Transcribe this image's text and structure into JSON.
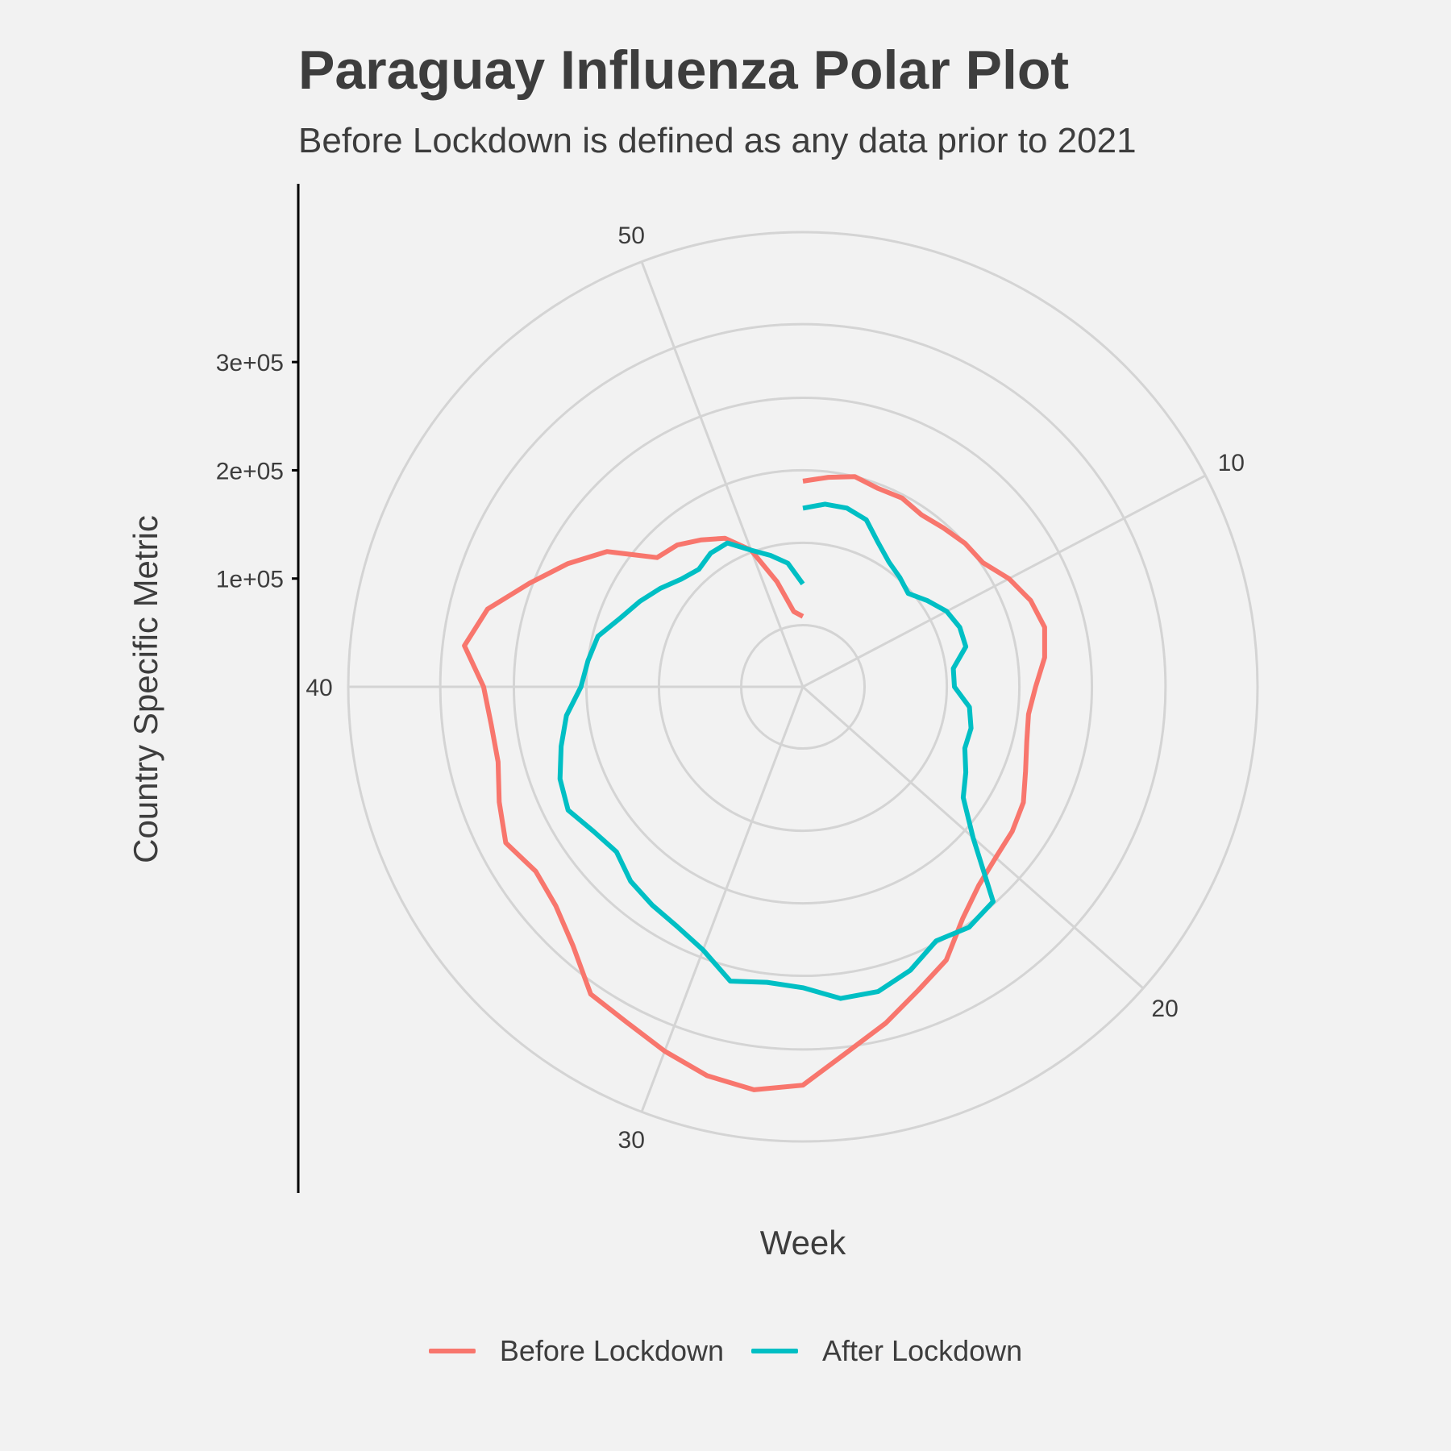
{
  "chart_data": {
    "type": "line",
    "coordinate_system": "polar",
    "title": "Paraguay Influenza Polar Plot",
    "subtitle": "Before Lockdown is defined as any data prior to 2021",
    "xlabel": "Week",
    "ylabel": "Country Specific Metric",
    "theta_ticks": [
      10,
      20,
      30,
      40,
      50
    ],
    "theta_range": [
      1,
      53
    ],
    "radial_ticks": [
      {
        "value": 100000,
        "label": "1e+05"
      },
      {
        "value": 200000,
        "label": "2e+05"
      },
      {
        "value": 300000,
        "label": "3e+05"
      }
    ],
    "radial_range": [
      0,
      420000
    ],
    "legend_position": "bottom",
    "grid": true,
    "series": [
      {
        "name": "Before Lockdown",
        "color": "#F8766D",
        "x": [
          1,
          2,
          3,
          4,
          5,
          6,
          7,
          8,
          9,
          10,
          11,
          12,
          13,
          14,
          15,
          16,
          17,
          18,
          19,
          20,
          21,
          22,
          23,
          24,
          25,
          26,
          27,
          28,
          29,
          30,
          31,
          32,
          33,
          34,
          35,
          36,
          37,
          38,
          39,
          40,
          41,
          42,
          43,
          44,
          45,
          46,
          47,
          48,
          49,
          50,
          51,
          52,
          53
        ],
        "values": [
          190000,
          195000,
          200000,
          196000,
          197000,
          193000,
          196000,
          200000,
          202000,
          215000,
          225000,
          230000,
          225000,
          215000,
          210000,
          213000,
          220000,
          230000,
          235000,
          238000,
          245000,
          260000,
          285000,
          300000,
          320000,
          340000,
          368000,
          375000,
          370000,
          360000,
          350000,
          345000,
          320000,
          305000,
          300000,
          310000,
          300000,
          290000,
          290000,
          295000,
          315000,
          300000,
          270000,
          245000,
          220000,
          180000,
          175000,
          165000,
          155000,
          135000,
          100000,
          70000,
          65000
        ]
      },
      {
        "name": "After Lockdown",
        "color": "#00BFC4",
        "x": [
          1,
          2,
          3,
          4,
          5,
          6,
          7,
          8,
          9,
          10,
          11,
          12,
          13,
          14,
          15,
          16,
          17,
          18,
          19,
          20,
          21,
          22,
          23,
          24,
          25,
          26,
          27,
          28,
          29,
          30,
          31,
          32,
          33,
          34,
          35,
          36,
          37,
          38,
          39,
          40,
          41,
          42,
          43,
          44,
          45,
          46,
          47,
          48,
          49,
          50,
          51,
          52,
          53
        ],
        "values": [
          165000,
          170000,
          170000,
          165000,
          150000,
          140000,
          135000,
          130000,
          140000,
          150000,
          155000,
          155000,
          140000,
          140000,
          155000,
          160000,
          160000,
          170000,
          180000,
          210000,
          265000,
          270000,
          265000,
          280000,
          290000,
          290000,
          278000,
          275000,
          280000,
          260000,
          250000,
          245000,
          240000,
          230000,
          235000,
          245000,
          240000,
          230000,
          220000,
          205000,
          200000,
          195000,
          180000,
          170000,
          160000,
          150000,
          145000,
          150000,
          150000,
          135000,
          125000,
          115000,
          95000
        ]
      }
    ]
  }
}
